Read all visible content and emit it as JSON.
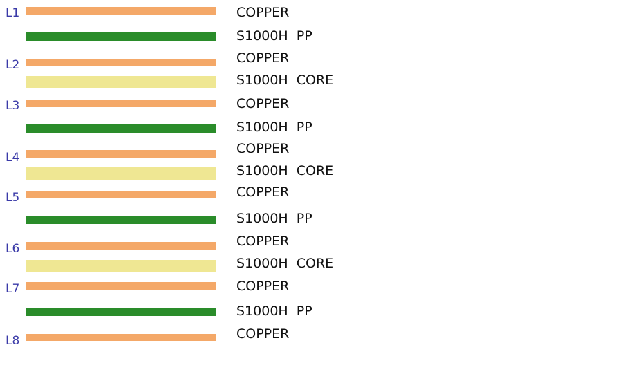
{
  "layer_labels": [
    "L1",
    "L2",
    "L3",
    "L4",
    "L5",
    "L6",
    "L7",
    "L8"
  ],
  "materials": [
    "COPPER",
    "S1000H PP",
    "COPPER",
    "S1000H CORE",
    "COPPER",
    "S1000H PP",
    "COPPER",
    "S1000H CORE",
    "COPPER",
    "S1000H PP",
    "COPPER",
    "S1000H CORE",
    "COPPER",
    "S1000H PP",
    "COPPER"
  ]
}
